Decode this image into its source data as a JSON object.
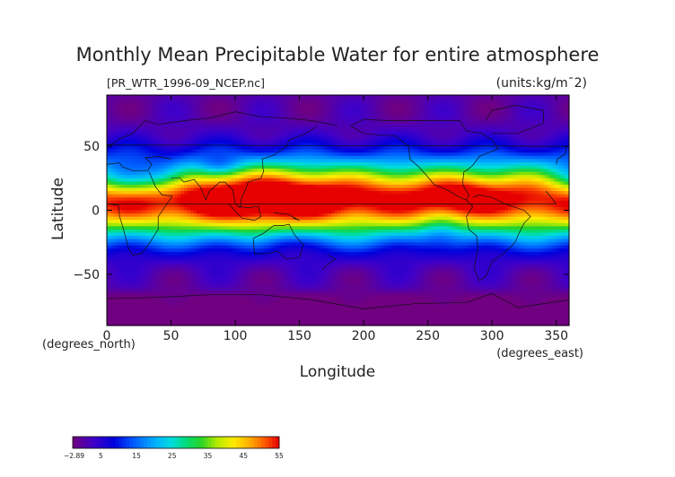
{
  "chart_data": {
    "type": "heatmap",
    "title": "Monthly Mean Precipitable Water for entire atmosphere",
    "file_label": "[PR_WTR_1996-09_NCEP.nc]",
    "units_label": "(units:kg/m¯2)",
    "xlabel": "Longitude",
    "xunit_label": "(degrees_east)",
    "ylabel": "Latitude",
    "yunit_label": "(degrees_north)",
    "xlim": [
      0,
      360
    ],
    "ylim": [
      -90,
      90
    ],
    "x_ticks": [
      {
        "value": 0,
        "label": "0"
      },
      {
        "value": 50,
        "label": "50"
      },
      {
        "value": 100,
        "label": "100"
      },
      {
        "value": 150,
        "label": "150"
      },
      {
        "value": 200,
        "label": "200"
      },
      {
        "value": 250,
        "label": "250"
      },
      {
        "value": 300,
        "label": "300"
      },
      {
        "value": 350,
        "label": "350"
      }
    ],
    "y_ticks": [
      {
        "value": 50,
        "label": "50"
      },
      {
        "value": 0,
        "label": "0"
      },
      {
        "value": -50,
        "label": "−50"
      }
    ],
    "colorbar": {
      "min": -2.89,
      "max": 55,
      "tick_labels": [
        {
          "value": -2.89,
          "label": "−2.89"
        },
        {
          "value": 5,
          "label": "5"
        },
        {
          "value": 15,
          "label": "15"
        },
        {
          "value": 25,
          "label": "25"
        },
        {
          "value": 35,
          "label": "35"
        },
        {
          "value": 45,
          "label": "45"
        },
        {
          "value": 55,
          "label": "55"
        }
      ]
    }
  }
}
